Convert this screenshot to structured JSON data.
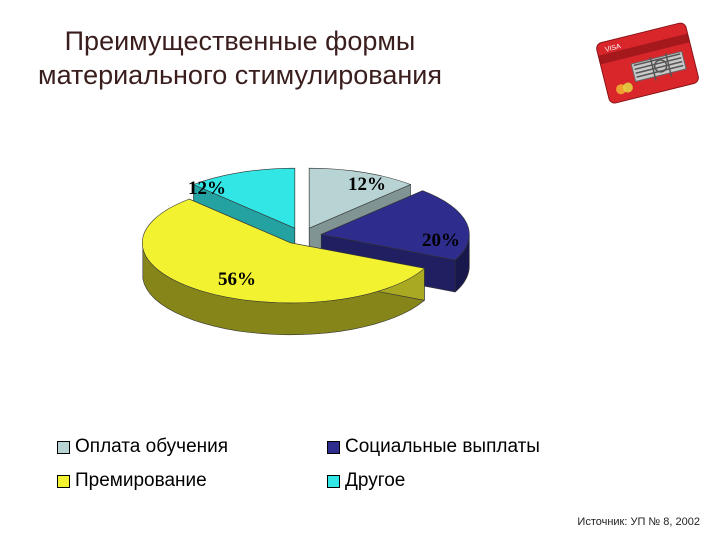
{
  "title": {
    "line1": "Преимущественные формы",
    "line2": "материального стимулирования"
  },
  "chart_data": {
    "type": "pie",
    "categories": [
      "Оплата обучения",
      "Социальные выплаты",
      "Премирование",
      "Другое"
    ],
    "values": [
      12,
      20,
      56,
      12
    ],
    "data_labels": [
      "12%",
      "20%",
      "56%",
      "12%"
    ],
    "colors": [
      "#b7d3d3",
      "#2e2c8c",
      "#f2f230",
      "#33e6e6"
    ],
    "exploded": true,
    "three_d": true,
    "legend_placement": "bottom"
  },
  "legend": {
    "items": [
      {
        "label": "Оплата обучения",
        "color": "#b7d3d3"
      },
      {
        "label": "Социальные выплаты",
        "color": "#2e2c8c"
      },
      {
        "label": "Премирование",
        "color": "#f2f230"
      },
      {
        "label": "Другое",
        "color": "#33e6e6"
      }
    ]
  },
  "source": "Источник: УП № 8, 2002",
  "logo": {
    "icon": "credit-card-mousetrap-icon"
  }
}
